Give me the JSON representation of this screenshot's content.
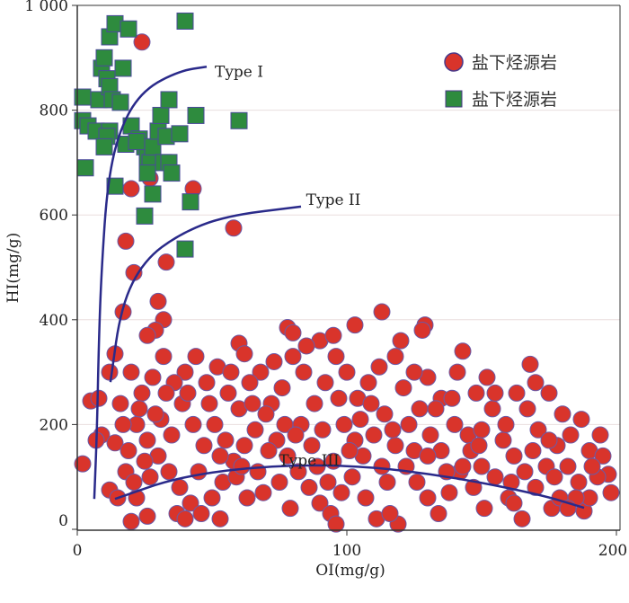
{
  "chart_data": {
    "type": "scatter",
    "xlabel": "OI(mg/g)",
    "ylabel": "HI(mg/g)",
    "xlim": [
      0,
      200
    ],
    "ylim": [
      0,
      1000
    ],
    "xticks": [
      0,
      100,
      200
    ],
    "xtick_labels": [
      "0",
      "100",
      "200"
    ],
    "yticks": [
      0,
      200,
      400,
      600,
      800,
      1000
    ],
    "ytick_labels": [
      "0",
      "200",
      "400",
      "600",
      "800",
      "1 000"
    ],
    "grid": "horizontal",
    "legend_position": "top-right",
    "series": [
      {
        "name": "盐下烃源岩",
        "marker": "circle",
        "color": "#d9342b",
        "points": [
          [
            24,
            930
          ],
          [
            27,
            670
          ],
          [
            20,
            650
          ],
          [
            43,
            650
          ],
          [
            58,
            575
          ],
          [
            18,
            550
          ],
          [
            21,
            490
          ],
          [
            33,
            510
          ],
          [
            17,
            415
          ],
          [
            30,
            435
          ],
          [
            32,
            400
          ],
          [
            29,
            380
          ],
          [
            26,
            370
          ],
          [
            14,
            335
          ],
          [
            9,
            180
          ],
          [
            5,
            245
          ],
          [
            8,
            250
          ],
          [
            2,
            125
          ],
          [
            7,
            170
          ],
          [
            12,
            75
          ],
          [
            14,
            165
          ],
          [
            60,
            355
          ],
          [
            62,
            335
          ],
          [
            78,
            385
          ],
          [
            80,
            375
          ],
          [
            90,
            360
          ],
          [
            95,
            370
          ],
          [
            103,
            390
          ],
          [
            113,
            415
          ],
          [
            120,
            360
          ],
          [
            129,
            390
          ],
          [
            128,
            380
          ],
          [
            143,
            340
          ],
          [
            152,
            290
          ],
          [
            168,
            315
          ],
          [
            170,
            280
          ],
          [
            175,
            260
          ],
          [
            180,
            220
          ],
          [
            190,
            150
          ],
          [
            195,
            140
          ],
          [
            197,
            105
          ],
          [
            198,
            70
          ],
          [
            193,
            100
          ],
          [
            188,
            35
          ],
          [
            176,
            40
          ],
          [
            165,
            20
          ],
          [
            160,
            60
          ],
          [
            150,
            120
          ],
          [
            145,
            180
          ],
          [
            140,
            200
          ],
          [
            135,
            250
          ],
          [
            130,
            290
          ],
          [
            125,
            300
          ],
          [
            118,
            330
          ],
          [
            112,
            310
          ],
          [
            108,
            280
          ],
          [
            104,
            250
          ],
          [
            100,
            300
          ],
          [
            96,
            330
          ],
          [
            92,
            280
          ],
          [
            88,
            240
          ],
          [
            84,
            300
          ],
          [
            80,
            330
          ],
          [
            76,
            270
          ],
          [
            72,
            240
          ],
          [
            68,
            300
          ],
          [
            64,
            280
          ],
          [
            60,
            230
          ],
          [
            56,
            260
          ],
          [
            52,
            310
          ],
          [
            48,
            280
          ],
          [
            44,
            330
          ],
          [
            40,
            300
          ],
          [
            36,
            280
          ],
          [
            32,
            330
          ],
          [
            28,
            290
          ],
          [
            24,
            260
          ],
          [
            20,
            300
          ],
          [
            16,
            240
          ],
          [
            22,
            200
          ],
          [
            26,
            170
          ],
          [
            30,
            140
          ],
          [
            34,
            110
          ],
          [
            38,
            80
          ],
          [
            42,
            50
          ],
          [
            46,
            30
          ],
          [
            50,
            60
          ],
          [
            54,
            90
          ],
          [
            58,
            130
          ],
          [
            62,
            160
          ],
          [
            66,
            190
          ],
          [
            70,
            220
          ],
          [
            74,
            170
          ],
          [
            78,
            140
          ],
          [
            82,
            110
          ],
          [
            86,
            80
          ],
          [
            90,
            50
          ],
          [
            94,
            30
          ],
          [
            98,
            70
          ],
          [
            102,
            100
          ],
          [
            106,
            140
          ],
          [
            110,
            180
          ],
          [
            114,
            220
          ],
          [
            118,
            160
          ],
          [
            122,
            120
          ],
          [
            126,
            90
          ],
          [
            130,
            60
          ],
          [
            134,
            30
          ],
          [
            138,
            70
          ],
          [
            142,
            110
          ],
          [
            146,
            150
          ],
          [
            150,
            190
          ],
          [
            154,
            230
          ],
          [
            158,
            170
          ],
          [
            162,
            140
          ],
          [
            166,
            110
          ],
          [
            170,
            80
          ],
          [
            174,
            120
          ],
          [
            178,
            160
          ],
          [
            182,
            120
          ],
          [
            186,
            90
          ],
          [
            190,
            60
          ],
          [
            18,
            110
          ],
          [
            22,
            60
          ],
          [
            26,
            25
          ],
          [
            20,
            15
          ],
          [
            15,
            60
          ],
          [
            17,
            200
          ],
          [
            19,
            150
          ],
          [
            23,
            230
          ],
          [
            27,
            100
          ],
          [
            31,
            210
          ],
          [
            35,
            180
          ],
          [
            39,
            240
          ],
          [
            43,
            200
          ],
          [
            47,
            160
          ],
          [
            51,
            200
          ],
          [
            55,
            170
          ],
          [
            59,
            100
          ],
          [
            63,
            60
          ],
          [
            67,
            110
          ],
          [
            71,
            150
          ],
          [
            75,
            90
          ],
          [
            79,
            40
          ],
          [
            83,
            200
          ],
          [
            87,
            160
          ],
          [
            91,
            190
          ],
          [
            95,
            130
          ],
          [
            99,
            200
          ],
          [
            103,
            170
          ],
          [
            107,
            60
          ],
          [
            111,
            20
          ],
          [
            115,
            90
          ],
          [
            119,
            10
          ],
          [
            123,
            200
          ],
          [
            127,
            230
          ],
          [
            131,
            180
          ],
          [
            135,
            150
          ],
          [
            139,
            250
          ],
          [
            143,
            120
          ],
          [
            147,
            80
          ],
          [
            151,
            40
          ],
          [
            155,
            100
          ],
          [
            159,
            200
          ],
          [
            163,
            260
          ],
          [
            167,
            230
          ],
          [
            171,
            190
          ],
          [
            175,
            170
          ],
          [
            179,
            60
          ],
          [
            183,
            180
          ],
          [
            187,
            210
          ],
          [
            191,
            120
          ],
          [
            194,
            180
          ],
          [
            37,
            30
          ],
          [
            45,
            110
          ],
          [
            53,
            20
          ],
          [
            65,
            240
          ],
          [
            73,
            320
          ],
          [
            85,
            350
          ],
          [
            97,
            250
          ],
          [
            109,
            240
          ],
          [
            121,
            270
          ],
          [
            133,
            230
          ],
          [
            141,
            300
          ],
          [
            155,
            260
          ],
          [
            113,
            120
          ],
          [
            57,
            300
          ],
          [
            49,
            240
          ],
          [
            41,
            260
          ],
          [
            33,
            260
          ],
          [
            29,
            220
          ],
          [
            25,
            130
          ],
          [
            21,
            90
          ],
          [
            53,
            140
          ],
          [
            61,
            120
          ],
          [
            69,
            70
          ],
          [
            77,
            200
          ],
          [
            81,
            180
          ],
          [
            89,
            120
          ],
          [
            93,
            90
          ],
          [
            101,
            150
          ],
          [
            105,
            210
          ],
          [
            117,
            190
          ],
          [
            125,
            150
          ],
          [
            137,
            110
          ],
          [
            149,
            160
          ],
          [
            161,
            90
          ],
          [
            169,
            150
          ],
          [
            177,
            100
          ],
          [
            185,
            60
          ],
          [
            12,
            300
          ],
          [
            40,
            20
          ],
          [
            96,
            10
          ],
          [
            116,
            30
          ],
          [
            130,
            140
          ],
          [
            148,
            260
          ],
          [
            162,
            50
          ],
          [
            182,
            40
          ]
        ]
      },
      {
        "name": "盐下烃源岩",
        "marker": "square",
        "color": "#2e8b3e",
        "points": [
          [
            2,
            780
          ],
          [
            3,
            690
          ],
          [
            2,
            825
          ],
          [
            4,
            770
          ],
          [
            7,
            760
          ],
          [
            8,
            820
          ],
          [
            9,
            880
          ],
          [
            10,
            900
          ],
          [
            11,
            860
          ],
          [
            12,
            845
          ],
          [
            13,
            820
          ],
          [
            12,
            760
          ],
          [
            11,
            750
          ],
          [
            10,
            730
          ],
          [
            12,
            940
          ],
          [
            14,
            965
          ],
          [
            19,
            955
          ],
          [
            17,
            880
          ],
          [
            16,
            815
          ],
          [
            18,
            735
          ],
          [
            20,
            770
          ],
          [
            14,
            655
          ],
          [
            23,
            745
          ],
          [
            25,
            730
          ],
          [
            26,
            710
          ],
          [
            27,
            700
          ],
          [
            28,
            730
          ],
          [
            26,
            680
          ],
          [
            30,
            760
          ],
          [
            31,
            790
          ],
          [
            33,
            750
          ],
          [
            32,
            700
          ],
          [
            34,
            700
          ],
          [
            35,
            680
          ],
          [
            34,
            820
          ],
          [
            38,
            755
          ],
          [
            40,
            970
          ],
          [
            44,
            790
          ],
          [
            42,
            625
          ],
          [
            40,
            535
          ],
          [
            25,
            598
          ],
          [
            28,
            640
          ],
          [
            60,
            780
          ],
          [
            22,
            740
          ]
        ]
      }
    ],
    "curves": [
      {
        "label": "Type I",
        "label_at": [
          60,
          864
        ],
        "points": [
          [
            6.3,
            58
          ],
          [
            7.3,
            187
          ],
          [
            8,
            360
          ],
          [
            9,
            496
          ],
          [
            11.3,
            668
          ],
          [
            16.3,
            772
          ],
          [
            24.7,
            840
          ],
          [
            38,
            875
          ],
          [
            48,
            883
          ]
        ]
      },
      {
        "label": "Type II",
        "label_at": [
          95,
          619
        ],
        "points": [
          [
            12.3,
            281
          ],
          [
            16.3,
            427
          ],
          [
            24.7,
            513
          ],
          [
            38,
            564
          ],
          [
            54.7,
            598
          ],
          [
            83,
            616
          ]
        ]
      },
      {
        "label": "Type III",
        "label_at": [
          86,
          122
        ],
        "points": [
          [
            14,
            58
          ],
          [
            38,
            101
          ],
          [
            71.3,
            122
          ],
          [
            104.7,
            122
          ],
          [
            138,
            101
          ],
          [
            171.3,
            67
          ],
          [
            188,
            41
          ]
        ]
      }
    ]
  }
}
